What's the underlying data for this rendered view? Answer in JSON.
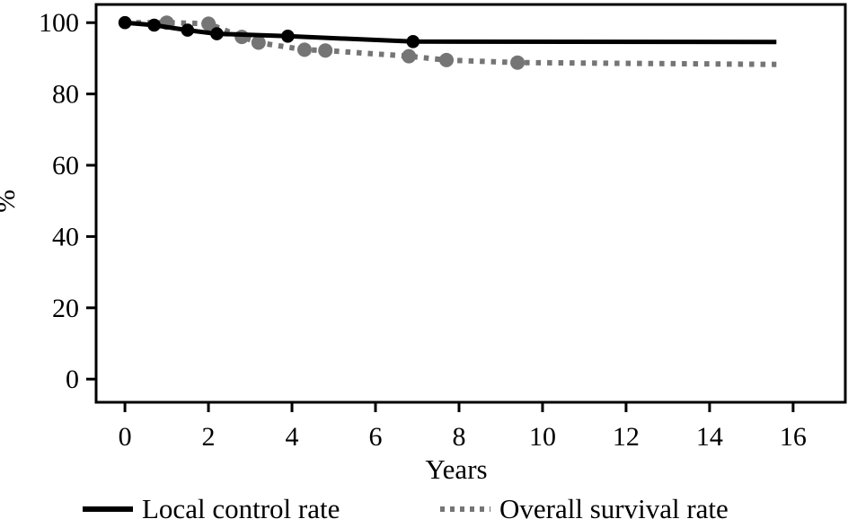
{
  "chart_data": {
    "type": "line",
    "title": "",
    "xlabel": "Years",
    "ylabel": "%",
    "xlim": [
      -0.69,
      17.25
    ],
    "ylim": [
      -6.5,
      105.1
    ],
    "x_ticks": [
      0,
      2,
      4,
      6,
      8,
      10,
      12,
      14,
      16
    ],
    "y_ticks": [
      0,
      20,
      40,
      60,
      80,
      100
    ],
    "grid": false,
    "legend_position": "bottom",
    "series": [
      {
        "name": "Local control rate",
        "color": "#000000",
        "line_style": "solid",
        "line_width": 5,
        "marker": "circle",
        "marker_radius": 7.3,
        "points": [
          {
            "x": 0.0,
            "y": 100.0,
            "marker": true
          },
          {
            "x": 0.7,
            "y": 99.3,
            "marker": true
          },
          {
            "x": 1.5,
            "y": 97.9,
            "marker": true
          },
          {
            "x": 2.2,
            "y": 96.9,
            "marker": true
          },
          {
            "x": 3.9,
            "y": 96.2,
            "marker": true
          },
          {
            "x": 6.9,
            "y": 94.7,
            "marker": true
          },
          {
            "x": 15.6,
            "y": 94.6,
            "marker": false
          }
        ]
      },
      {
        "name": "Overall survival rate",
        "color": "#757575",
        "line_style": "dotted",
        "line_width": 6,
        "marker": "circle",
        "marker_radius": 8,
        "points": [
          {
            "x": 0.0,
            "y": 100.0,
            "marker": false
          },
          {
            "x": 1.0,
            "y": 100.0,
            "marker": true
          },
          {
            "x": 2.0,
            "y": 99.7,
            "marker": true
          },
          {
            "x": 2.8,
            "y": 96.0,
            "marker": true
          },
          {
            "x": 3.2,
            "y": 94.4,
            "marker": true
          },
          {
            "x": 4.3,
            "y": 92.4,
            "marker": true
          },
          {
            "x": 4.8,
            "y": 92.2,
            "marker": true
          },
          {
            "x": 6.8,
            "y": 90.6,
            "marker": true
          },
          {
            "x": 7.7,
            "y": 89.5,
            "marker": true
          },
          {
            "x": 9.4,
            "y": 88.8,
            "marker": true
          },
          {
            "x": 15.6,
            "y": 88.3,
            "marker": false
          }
        ]
      }
    ],
    "legend": [
      {
        "label": "Local control rate",
        "color": "#000000",
        "style": "solid"
      },
      {
        "label": "Overall survival rate",
        "color": "#757575",
        "style": "dotted"
      }
    ]
  }
}
